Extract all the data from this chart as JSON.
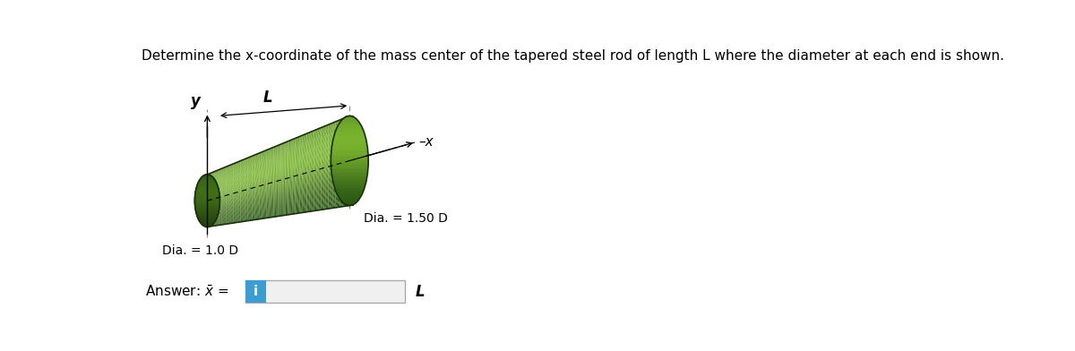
{
  "title": "Determine the x-coordinate of the mass center of the tapered steel rod of length L where the diameter at each end is shown.",
  "title_fontsize": 11,
  "background_color": "#ffffff",
  "dia_small": "Dia. = 1.0 D",
  "dia_large": "Dia. = 1.50 D",
  "label_y": "y",
  "label_x": "x",
  "label_L": "L",
  "info_button_color": "#3b9dd1",
  "info_button_text": "i",
  "rod_green_dark": "#2a4f1a",
  "rod_green_mid": "#3d6e22",
  "rod_green_light": "#6a9e3a",
  "rod_green_highlight": "#a0c870"
}
